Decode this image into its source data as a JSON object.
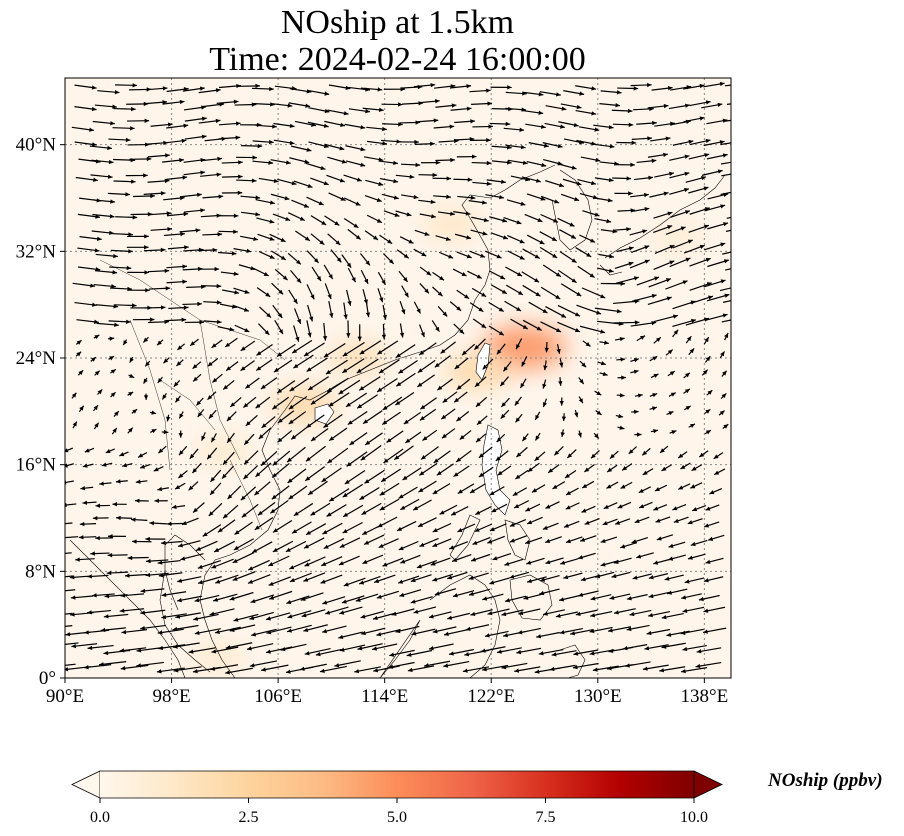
{
  "title": {
    "line1": "NOship at 1.5km",
    "line2": "Time: 2024-02-24 16:00:00"
  },
  "map": {
    "lon_range": [
      90,
      140
    ],
    "lat_range": [
      0,
      45
    ],
    "background_color": "#fff5eb",
    "grid": "dotted",
    "x_ticks": [
      "90°E",
      "98°E",
      "106°E",
      "114°E",
      "122°E",
      "130°E",
      "138°E"
    ],
    "x_tick_values": [
      90,
      98,
      106,
      114,
      122,
      130,
      138
    ],
    "y_ticks": [
      "0°",
      "8°N",
      "16°N",
      "24°N",
      "32°N",
      "40°N"
    ],
    "y_tick_values": [
      0,
      8,
      16,
      24,
      32,
      40
    ]
  },
  "colorbar": {
    "label": "NOship (ppbv)",
    "ticks": [
      "0.0",
      "2.5",
      "5.0",
      "7.5",
      "10.0"
    ],
    "tick_values": [
      0,
      2.5,
      5,
      7.5,
      10
    ],
    "range": [
      0,
      10
    ],
    "extend": "both",
    "colormap": "OrRd",
    "colors": [
      "#fff7ec",
      "#fee8c8",
      "#fdd49e",
      "#fdbb84",
      "#fc8d59",
      "#ef6548",
      "#d7301f",
      "#b30000",
      "#7f0000"
    ]
  },
  "concentration_hotspots": [
    {
      "lon": 124.5,
      "lat": 24.8,
      "value": 5.0
    },
    {
      "lon": 121.0,
      "lat": 23.0,
      "value": 2.5
    },
    {
      "lon": 108.0,
      "lat": 20.5,
      "value": 2.5
    },
    {
      "lon": 112.0,
      "lat": 24.0,
      "value": 2.0
    },
    {
      "lon": 119.0,
      "lat": 34.0,
      "value": 1.5
    },
    {
      "lon": 102.0,
      "lat": 17.0,
      "value": 1.2
    },
    {
      "lon": 101.5,
      "lat": 1.5,
      "value": 1.2
    },
    {
      "lon": 136.0,
      "lat": 33.0,
      "value": 1.0
    }
  ]
}
